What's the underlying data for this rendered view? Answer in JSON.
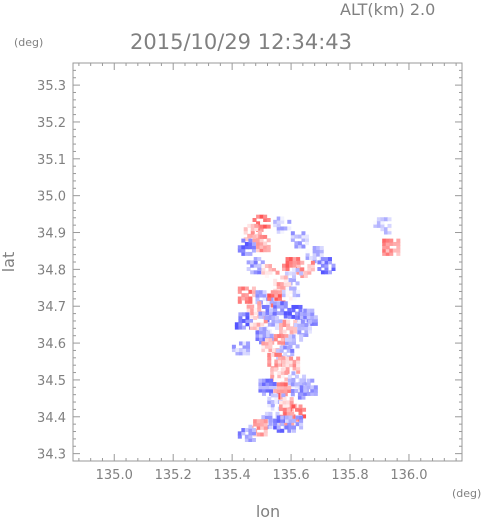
{
  "header": {
    "altitude_label": "ALT(km) 2.0",
    "timestamp": "2015/10/29 12:34:43"
  },
  "chart_data": {
    "type": "heatmap",
    "title": "2015/10/29 12:34:43",
    "subtitle": "ALT(km) 2.0",
    "xlabel": "lon",
    "ylabel": "lat",
    "x_unit": "(deg)",
    "y_unit": "(deg)",
    "xlim": [
      134.86,
      136.18
    ],
    "ylim": [
      34.28,
      35.36
    ],
    "x_ticks": [
      135.0,
      135.2,
      135.4,
      135.6,
      135.8,
      136.0
    ],
    "x_tick_labels": [
      "135.0",
      "135.2",
      "135.4",
      "135.6",
      "135.8",
      "136.0"
    ],
    "y_ticks": [
      34.3,
      34.4,
      34.5,
      34.6,
      34.7,
      34.8,
      34.9,
      35.0,
      35.1,
      35.2,
      35.3
    ],
    "y_tick_labels": [
      "34.3",
      "34.4",
      "34.5",
      "34.6",
      "34.7",
      "34.8",
      "34.9",
      "35.0",
      "35.1",
      "35.2",
      "35.3"
    ],
    "grid": false,
    "minor_ticks": 4,
    "colors": {
      "positive": "#ee5555",
      "negative": "#5566ee",
      "frame": "#999999"
    },
    "value_note": "diverging blue (negative) to red (positive); no colorbar shown",
    "cells": [
      {
        "lon": 135.5,
        "lat": 34.925,
        "v": 0.8
      },
      {
        "lon": 135.47,
        "lat": 34.9,
        "v": 0.4
      },
      {
        "lon": 135.57,
        "lat": 34.92,
        "v": -0.3
      },
      {
        "lon": 135.91,
        "lat": 34.918,
        "v": -0.2
      },
      {
        "lon": 135.94,
        "lat": 34.86,
        "v": 0.6
      },
      {
        "lon": 135.45,
        "lat": 34.86,
        "v": -0.7
      },
      {
        "lon": 135.5,
        "lat": 34.87,
        "v": 0.5
      },
      {
        "lon": 135.63,
        "lat": 34.88,
        "v": -0.4
      },
      {
        "lon": 135.68,
        "lat": 34.84,
        "v": -0.3
      },
      {
        "lon": 135.48,
        "lat": 34.81,
        "v": -0.5
      },
      {
        "lon": 135.53,
        "lat": 34.8,
        "v": 0.3
      },
      {
        "lon": 135.6,
        "lat": 34.81,
        "v": 0.7
      },
      {
        "lon": 135.65,
        "lat": 34.8,
        "v": 0.5
      },
      {
        "lon": 135.72,
        "lat": 34.81,
        "v": -0.8
      },
      {
        "lon": 135.61,
        "lat": 34.78,
        "v": -0.3
      },
      {
        "lon": 135.57,
        "lat": 34.76,
        "v": 0.4
      },
      {
        "lon": 135.45,
        "lat": 34.73,
        "v": 0.6
      },
      {
        "lon": 135.51,
        "lat": 34.72,
        "v": -0.4
      },
      {
        "lon": 135.55,
        "lat": 34.72,
        "v": 0.8
      },
      {
        "lon": 135.6,
        "lat": 34.73,
        "v": -0.2
      },
      {
        "lon": 135.48,
        "lat": 34.69,
        "v": 0.3
      },
      {
        "lon": 135.52,
        "lat": 34.68,
        "v": -0.6
      },
      {
        "lon": 135.57,
        "lat": 34.69,
        "v": -0.7
      },
      {
        "lon": 135.62,
        "lat": 34.68,
        "v": -0.9
      },
      {
        "lon": 135.66,
        "lat": 34.67,
        "v": -0.5
      },
      {
        "lon": 135.44,
        "lat": 34.66,
        "v": -0.8
      },
      {
        "lon": 135.49,
        "lat": 34.65,
        "v": 0.4
      },
      {
        "lon": 135.54,
        "lat": 34.65,
        "v": -0.3
      },
      {
        "lon": 135.59,
        "lat": 34.64,
        "v": 0.5
      },
      {
        "lon": 135.64,
        "lat": 34.64,
        "v": -0.4
      },
      {
        "lon": 135.51,
        "lat": 34.62,
        "v": -0.6
      },
      {
        "lon": 135.56,
        "lat": 34.61,
        "v": 0.6
      },
      {
        "lon": 135.61,
        "lat": 34.6,
        "v": -0.3
      },
      {
        "lon": 135.53,
        "lat": 34.59,
        "v": 0.3
      },
      {
        "lon": 135.58,
        "lat": 34.57,
        "v": -0.5
      },
      {
        "lon": 135.55,
        "lat": 34.55,
        "v": 0.5
      },
      {
        "lon": 135.6,
        "lat": 34.54,
        "v": 0.4
      },
      {
        "lon": 135.43,
        "lat": 34.59,
        "v": -0.4
      },
      {
        "lon": 135.56,
        "lat": 34.51,
        "v": 0.3
      },
      {
        "lon": 135.62,
        "lat": 34.5,
        "v": -0.3
      },
      {
        "lon": 135.52,
        "lat": 34.48,
        "v": -0.6
      },
      {
        "lon": 135.57,
        "lat": 34.47,
        "v": 0.7
      },
      {
        "lon": 135.63,
        "lat": 34.47,
        "v": -0.5
      },
      {
        "lon": 135.66,
        "lat": 34.48,
        "v": -0.6
      },
      {
        "lon": 135.55,
        "lat": 34.44,
        "v": -0.3
      },
      {
        "lon": 135.59,
        "lat": 34.43,
        "v": 0.4
      },
      {
        "lon": 135.62,
        "lat": 34.41,
        "v": 0.8
      },
      {
        "lon": 135.58,
        "lat": 34.4,
        "v": 0.6
      },
      {
        "lon": 135.53,
        "lat": 34.39,
        "v": -0.4
      },
      {
        "lon": 135.57,
        "lat": 34.38,
        "v": -0.7
      },
      {
        "lon": 135.61,
        "lat": 34.38,
        "v": -0.5
      },
      {
        "lon": 135.49,
        "lat": 34.37,
        "v": 0.5
      },
      {
        "lon": 135.45,
        "lat": 34.355,
        "v": -0.6
      }
    ]
  }
}
